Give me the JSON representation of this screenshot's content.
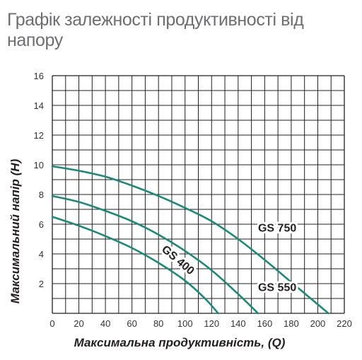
{
  "title": "Графік залежності продуктивності від напору",
  "chart_data": {
    "type": "line",
    "title": "Графік залежності продуктивності від напору",
    "xlabel": "Максимальна продуктивність, (Q)",
    "ylabel": "Максимальний напір (H)",
    "xlim": [
      0,
      220
    ],
    "ylim": [
      0,
      16
    ],
    "xticks": [
      0,
      20,
      40,
      60,
      80,
      100,
      120,
      140,
      160,
      180,
      200,
      220
    ],
    "yticks": [
      2,
      4,
      6,
      8,
      10,
      12,
      14,
      16
    ],
    "grid": true,
    "series_color": "#1a8a78",
    "series": [
      {
        "name": "GS 750",
        "x": [
          0,
          20,
          40,
          60,
          80,
          100,
          120,
          140,
          160,
          180,
          200,
          208
        ],
        "y": [
          9.9,
          9.6,
          9.2,
          8.6,
          7.9,
          7.1,
          6.2,
          5.0,
          3.6,
          2.1,
          0.6,
          0
        ]
      },
      {
        "name": "GS 550",
        "x": [
          0,
          20,
          40,
          60,
          80,
          100,
          120,
          140,
          155
        ],
        "y": [
          7.9,
          7.5,
          6.9,
          6.2,
          5.3,
          4.2,
          2.9,
          1.3,
          0
        ]
      },
      {
        "name": "GS 400",
        "x": [
          0,
          20,
          40,
          60,
          80,
          100,
          115,
          125
        ],
        "y": [
          6.5,
          5.9,
          5.2,
          4.4,
          3.4,
          2.2,
          1.0,
          0
        ]
      }
    ]
  }
}
